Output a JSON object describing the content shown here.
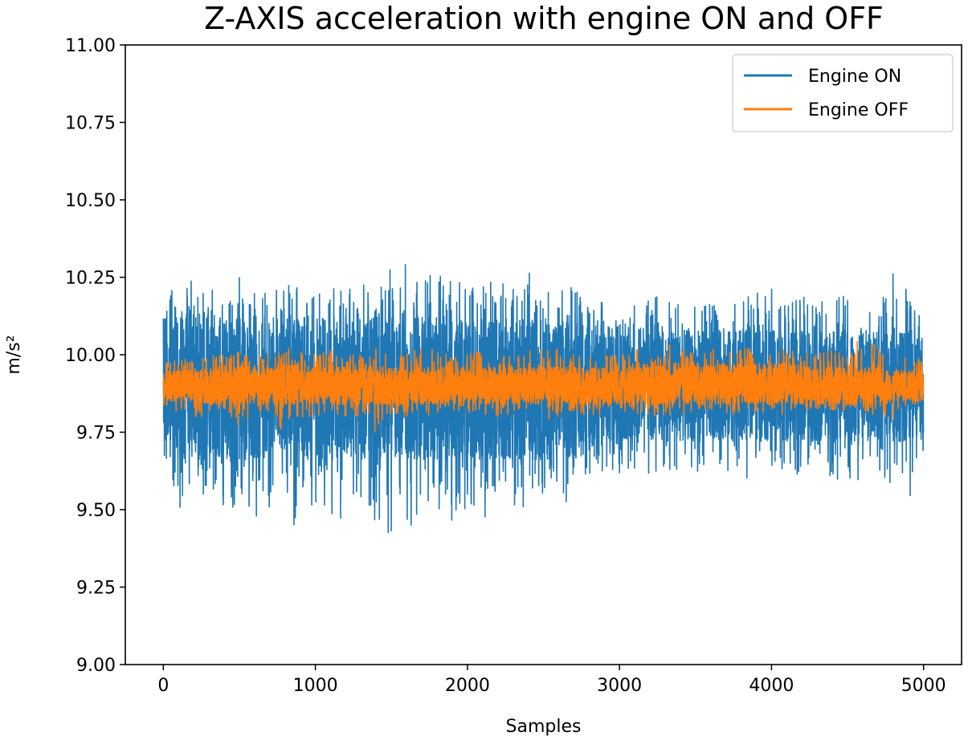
{
  "chart_data": {
    "type": "line",
    "title": "Z-AXIS acceleration with engine ON and OFF",
    "xlabel": "Samples",
    "ylabel": "m/s²",
    "xlim": [
      -250,
      5250
    ],
    "ylim": [
      9.0,
      11.0
    ],
    "xticks": [
      0,
      1000,
      2000,
      3000,
      4000,
      5000
    ],
    "xtick_labels": [
      "0",
      "1000",
      "2000",
      "3000",
      "4000",
      "5000"
    ],
    "yticks": [
      9.0,
      9.25,
      9.5,
      9.75,
      10.0,
      10.25,
      10.5,
      10.75,
      11.0
    ],
    "ytick_labels": [
      "9.00",
      "9.25",
      "9.50",
      "9.75",
      "10.00",
      "10.25",
      "10.50",
      "10.75",
      "11.00"
    ],
    "grid": false,
    "legend_position": "top-right",
    "series": [
      {
        "name": "Engine ON",
        "color": "#1f77b4",
        "x": [
          0,
          100,
          200,
          300,
          400,
          500,
          600,
          700,
          800,
          900,
          1000,
          1100,
          1200,
          1300,
          1400,
          1500,
          1600,
          1700,
          1800,
          1900,
          2000,
          2100,
          2200,
          2300,
          2400,
          2500,
          2600,
          2700,
          2800,
          2900,
          3000,
          3100,
          3200,
          3300,
          3400,
          3500,
          3600,
          3700,
          3800,
          3900,
          4000,
          4100,
          4200,
          4300,
          4400,
          4500,
          4600,
          4700,
          4800,
          4900,
          5000
        ],
        "upper": [
          10.3,
          10.24,
          10.24,
          10.22,
          10.2,
          10.25,
          10.2,
          10.22,
          10.22,
          10.24,
          10.2,
          10.22,
          10.22,
          10.24,
          10.18,
          10.3,
          10.3,
          10.3,
          10.25,
          10.28,
          10.22,
          10.22,
          10.26,
          10.22,
          10.28,
          10.2,
          10.24,
          10.22,
          10.15,
          10.18,
          10.16,
          10.16,
          10.18,
          10.2,
          10.16,
          10.18,
          10.16,
          10.16,
          10.18,
          10.2,
          10.22,
          10.18,
          10.2,
          10.18,
          10.18,
          10.2,
          10.18,
          10.16,
          10.28,
          10.2,
          10.1
        ],
        "lower": [
          9.54,
          9.44,
          9.53,
          9.55,
          9.5,
          9.51,
          9.46,
          9.49,
          9.48,
          9.4,
          9.5,
          9.45,
          9.48,
          9.52,
          9.44,
          9.36,
          9.42,
          9.5,
          9.5,
          9.42,
          9.52,
          9.46,
          9.54,
          9.46,
          9.52,
          9.55,
          9.58,
          9.46,
          9.6,
          9.6,
          9.61,
          9.62,
          9.6,
          9.61,
          9.6,
          9.6,
          9.6,
          9.61,
          9.6,
          9.6,
          9.58,
          9.6,
          9.6,
          9.6,
          9.6,
          9.59,
          9.6,
          9.6,
          9.58,
          9.51,
          9.6
        ],
        "bulk_high": [
          10.12,
          10.12,
          10.12,
          10.12,
          10.12,
          10.12,
          10.12,
          10.12,
          10.12,
          10.12,
          10.12,
          10.12,
          10.12,
          10.12,
          10.12,
          10.12,
          10.12,
          10.12,
          10.12,
          10.12,
          10.12,
          10.12,
          10.12,
          10.12,
          10.12,
          10.12,
          10.12,
          10.12,
          10.12,
          10.1,
          10.08,
          10.08,
          10.08,
          10.08,
          10.08,
          10.08,
          10.08,
          10.08,
          10.08,
          10.08,
          10.08,
          10.08,
          10.08,
          10.08,
          10.08,
          10.08,
          10.08,
          10.08,
          10.08,
          10.08,
          10.08
        ],
        "bulk_low": [
          9.66,
          9.66,
          9.66,
          9.66,
          9.66,
          9.66,
          9.66,
          9.66,
          9.66,
          9.66,
          9.66,
          9.66,
          9.66,
          9.66,
          9.66,
          9.66,
          9.66,
          9.66,
          9.66,
          9.66,
          9.66,
          9.66,
          9.66,
          9.66,
          9.66,
          9.66,
          9.66,
          9.66,
          9.68,
          9.7,
          9.72,
          9.72,
          9.72,
          9.72,
          9.72,
          9.72,
          9.72,
          9.72,
          9.72,
          9.72,
          9.72,
          9.72,
          9.72,
          9.72,
          9.72,
          9.72,
          9.72,
          9.72,
          9.72,
          9.72,
          9.72
        ]
      },
      {
        "name": "Engine OFF",
        "color": "#ff7f0e",
        "x": [
          0,
          100,
          200,
          300,
          400,
          500,
          600,
          700,
          800,
          900,
          1000,
          1100,
          1200,
          1300,
          1400,
          1500,
          1600,
          1700,
          1800,
          1900,
          2000,
          2100,
          2200,
          2300,
          2400,
          2500,
          2600,
          2700,
          2800,
          2900,
          3000,
          3100,
          3200,
          3300,
          3400,
          3500,
          3600,
          3700,
          3800,
          3900,
          4000,
          4100,
          4200,
          4300,
          4400,
          4500,
          4600,
          4700,
          4800,
          4900,
          5000
        ],
        "upper": [
          9.98,
          10.0,
          9.98,
          10.0,
          10.0,
          10.02,
          10.0,
          10.0,
          10.02,
          10.02,
          10.0,
          10.02,
          10.0,
          10.0,
          10.02,
          10.0,
          10.0,
          10.06,
          10.02,
          10.0,
          10.0,
          10.02,
          10.0,
          10.0,
          10.02,
          10.02,
          10.02,
          10.0,
          10.02,
          10.0,
          10.0,
          10.02,
          10.02,
          10.04,
          10.02,
          10.0,
          10.02,
          10.02,
          10.02,
          10.02,
          10.0,
          10.02,
          10.0,
          10.02,
          10.02,
          10.0,
          10.08,
          10.02,
          10.0,
          10.02,
          9.98
        ],
        "lower": [
          9.84,
          9.8,
          9.8,
          9.8,
          9.8,
          9.76,
          9.8,
          9.8,
          9.74,
          9.8,
          9.8,
          9.8,
          9.8,
          9.8,
          9.74,
          9.8,
          9.8,
          9.79,
          9.8,
          9.8,
          9.8,
          9.8,
          9.8,
          9.79,
          9.8,
          9.78,
          9.8,
          9.82,
          9.8,
          9.8,
          9.82,
          9.8,
          9.8,
          9.8,
          9.8,
          9.82,
          9.82,
          9.8,
          9.8,
          9.8,
          9.82,
          9.8,
          9.8,
          9.82,
          9.82,
          9.8,
          9.82,
          9.8,
          9.79,
          9.82,
          9.86
        ],
        "bulk_high": [
          9.95,
          9.95,
          9.95,
          9.96,
          9.96,
          9.96,
          9.96,
          9.96,
          9.97,
          9.97,
          9.96,
          9.96,
          9.96,
          9.96,
          9.96,
          9.96,
          9.96,
          9.96,
          9.96,
          9.96,
          9.96,
          9.96,
          9.96,
          9.96,
          9.96,
          9.96,
          9.96,
          9.96,
          9.96,
          9.96,
          9.96,
          9.97,
          9.97,
          9.97,
          9.97,
          9.97,
          9.97,
          9.97,
          9.97,
          9.97,
          9.97,
          9.97,
          9.96,
          9.96,
          9.96,
          9.96,
          9.96,
          9.96,
          9.95,
          9.95,
          9.95
        ],
        "bulk_low": [
          9.85,
          9.85,
          9.85,
          9.84,
          9.84,
          9.84,
          9.84,
          9.84,
          9.84,
          9.84,
          9.84,
          9.84,
          9.84,
          9.84,
          9.84,
          9.84,
          9.84,
          9.84,
          9.84,
          9.84,
          9.84,
          9.84,
          9.84,
          9.84,
          9.84,
          9.84,
          9.84,
          9.84,
          9.84,
          9.84,
          9.84,
          9.84,
          9.84,
          9.84,
          9.84,
          9.84,
          9.84,
          9.84,
          9.84,
          9.84,
          9.84,
          9.84,
          9.84,
          9.84,
          9.84,
          9.84,
          9.84,
          9.84,
          9.85,
          9.85,
          9.85
        ]
      }
    ]
  }
}
